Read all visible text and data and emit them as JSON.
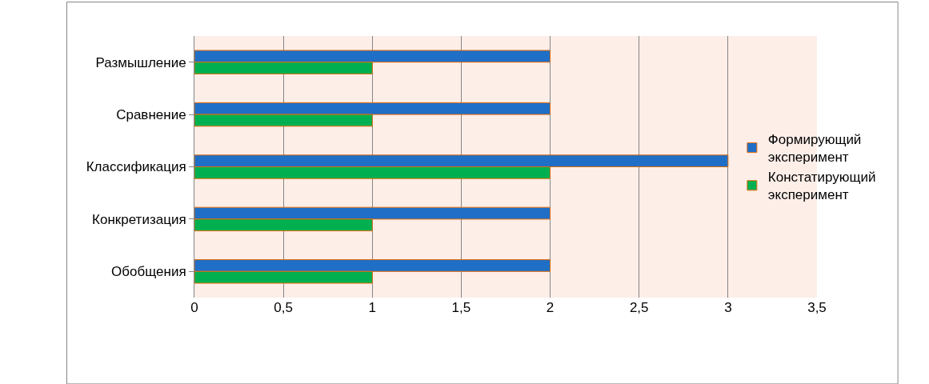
{
  "chart_data": {
    "type": "bar",
    "orientation": "horizontal",
    "categories": [
      "Размышление",
      "Сравнение",
      "Классификация",
      "Конкретизация",
      "Обобщения"
    ],
    "series": [
      {
        "name": "Формирующий эксперимент",
        "color": "#1f6fc6",
        "values": [
          2,
          2,
          3,
          2,
          2
        ]
      },
      {
        "name": "Констатирующий эксперимент",
        "color": "#00b050",
        "values": [
          1,
          1,
          2,
          1,
          1
        ]
      }
    ],
    "xlim": [
      0,
      3.5
    ],
    "xticks": [
      {
        "value": 0,
        "label": "0"
      },
      {
        "value": 0.5,
        "label": "0,5"
      },
      {
        "value": 1,
        "label": "1"
      },
      {
        "value": 1.5,
        "label": "1,5"
      },
      {
        "value": 2,
        "label": "2"
      },
      {
        "value": 2.5,
        "label": "2,5"
      },
      {
        "value": 3,
        "label": "3"
      },
      {
        "value": 3.5,
        "label": "3,5"
      }
    ],
    "grid": "x",
    "legend": "right"
  }
}
